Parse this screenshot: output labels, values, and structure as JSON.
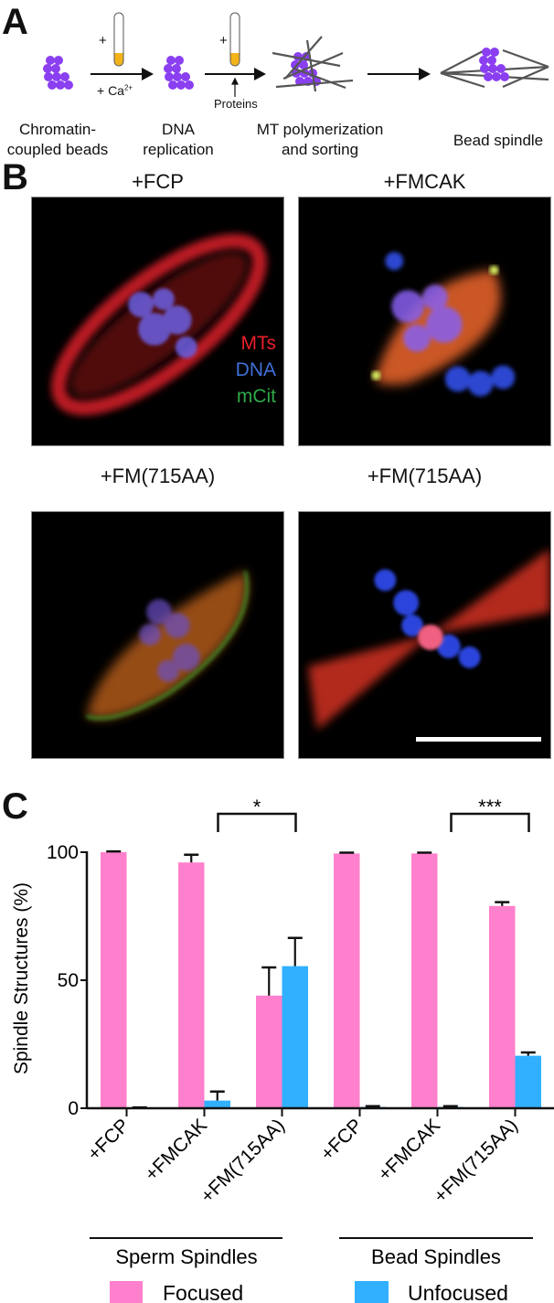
{
  "panel_a": {
    "letter": "A",
    "plus_1": "+",
    "plus_2": "+",
    "calcium": "+ Ca",
    "calcium_sup": "2+",
    "proteins": "Proteins",
    "steps": [
      {
        "line1": "Chromatin-",
        "line2": "coupled beads"
      },
      {
        "line1": "DNA",
        "line2": "replication"
      },
      {
        "line1": "MT polymerization",
        "line2": "and sorting"
      },
      {
        "line1": "Bead spindle",
        "line2": ""
      }
    ],
    "colors": {
      "beads": "#8a3ff0",
      "tube_fill": "#f2b418",
      "microtubules": "#555555"
    }
  },
  "panel_b": {
    "letter": "B",
    "images": [
      {
        "title": "+FCP"
      },
      {
        "title": "+FMCAK"
      },
      {
        "title": "+FM(715AA)"
      },
      {
        "title": "+FM(715AA)"
      }
    ],
    "channel_legend": [
      {
        "label": "MTs",
        "color": "#e8202a"
      },
      {
        "label": "DNA",
        "color": "#3f6fd8"
      },
      {
        "label": "mCit",
        "color": "#2fa84a"
      }
    ]
  },
  "panel_c": {
    "letter": "C"
  },
  "chart_data": {
    "type": "bar",
    "ylabel": "Spindle Structures (%)",
    "xlabel": "",
    "ylim": [
      0,
      100
    ],
    "yticks": [
      "0",
      "50",
      "100"
    ],
    "categories": [
      "+FCP",
      "+FMCAK",
      "+FM(715AA)",
      "+FCP",
      "+FMCAK",
      "+FM(715AA)"
    ],
    "groups": [
      {
        "label": "Sperm Spindles",
        "categories": [
          0,
          1,
          2
        ]
      },
      {
        "label": "Bead Spindles",
        "categories": [
          3,
          4,
          5
        ]
      }
    ],
    "series": [
      {
        "name": "Focused",
        "color": "#ff80cc",
        "values": [
          100,
          96,
          44,
          99.5,
          99.5,
          79
        ],
        "errors": [
          0.3,
          3,
          11,
          0.3,
          0.3,
          1.5
        ]
      },
      {
        "name": "Unfocused",
        "color": "#30b0ff",
        "values": [
          0,
          3,
          55.5,
          0.5,
          0.5,
          20.5
        ],
        "errors": [
          0.3,
          3.5,
          11,
          0.3,
          0.3,
          1.3
        ]
      }
    ],
    "significance": [
      {
        "between": [
          1,
          2
        ],
        "label": "*"
      },
      {
        "between": [
          4,
          5
        ],
        "label": "***"
      }
    ],
    "grid": false,
    "legend": "bottom"
  }
}
